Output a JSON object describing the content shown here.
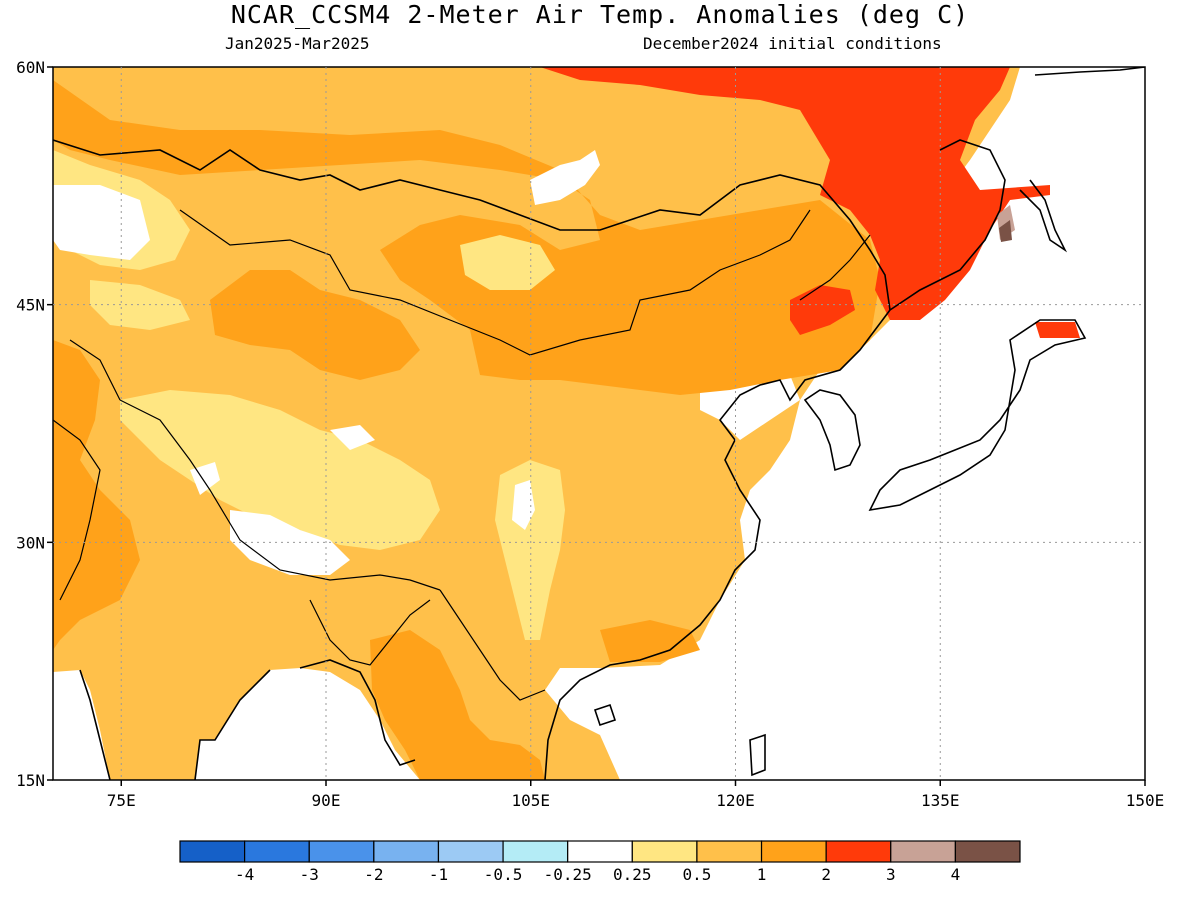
{
  "title": "NCAR_CCSM4 2-Meter Air Temp. Anomalies (deg C)",
  "period": "Jan2025-Mar2025",
  "initial_conditions": "December2024 initial conditions",
  "map": {
    "lon_range": [
      70,
      150
    ],
    "lat_range": [
      15,
      60
    ],
    "lat_ticks": [
      {
        "value": 60,
        "label": "60N"
      },
      {
        "value": 45,
        "label": "45N"
      },
      {
        "value": 30,
        "label": "30N"
      },
      {
        "value": 15,
        "label": "15N"
      }
    ],
    "lon_ticks": [
      {
        "value": 75,
        "label": "75E"
      },
      {
        "value": 90,
        "label": "90E"
      },
      {
        "value": 105,
        "label": "105E"
      },
      {
        "value": 120,
        "label": "120E"
      },
      {
        "value": 135,
        "label": "135E"
      },
      {
        "value": 150,
        "label": "150E"
      }
    ]
  },
  "colors": {
    "lt_m4": "#1560c8",
    "m4_m3": "#2a78de",
    "m3_m2": "#4a92ea",
    "m2_m1": "#78b2f0",
    "m1_m05": "#9ccaf4",
    "m05_m025": "#b4ecf6",
    "neutral": "#ffffff",
    "p025_p05": "#ffe682",
    "p05_p1": "#ffc04a",
    "p1_p2": "#ffa21a",
    "p2_p3": "#ff3a0a",
    "p3_p4": "#c8a296",
    "gt_p4": "#7a5246"
  },
  "legend": {
    "bins": [
      "lt_m4",
      "m4_m3",
      "m3_m2",
      "m2_m1",
      "m1_m05",
      "m05_m025",
      "neutral",
      "p025_p05",
      "p05_p1",
      "p1_p2",
      "p2_p3",
      "p3_p4",
      "gt_p4"
    ],
    "labels": [
      "-4",
      "-3",
      "-2",
      "-1",
      "-0.5",
      "-0.25",
      "0.25",
      "0.5",
      "1",
      "2",
      "3",
      "4"
    ]
  }
}
